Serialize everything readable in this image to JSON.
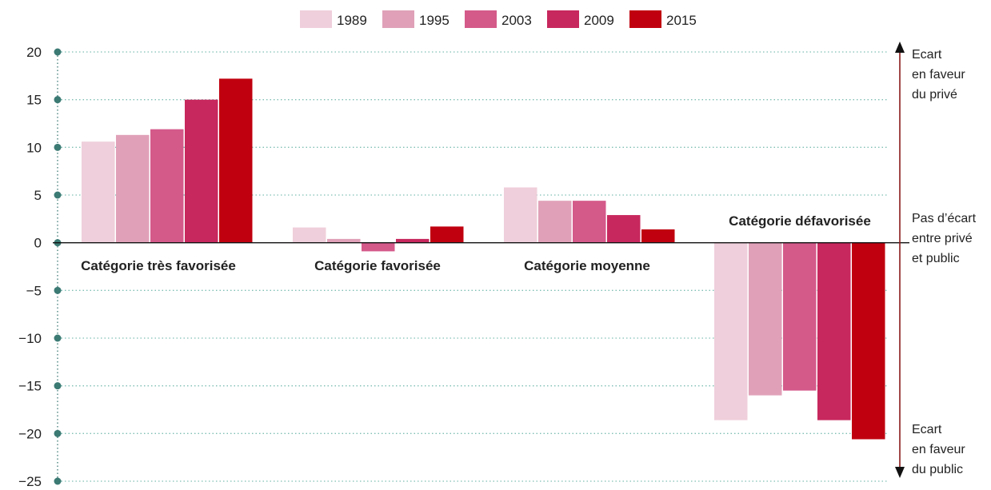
{
  "chart_data": {
    "type": "bar",
    "categories": [
      "Catégorie très favorisée",
      "Catégorie favorisée",
      "Catégorie moyenne",
      "Catégorie défavorisée"
    ],
    "series": [
      {
        "name": "1989",
        "color": "#efcfdb",
        "values": [
          10.6,
          1.6,
          5.8,
          -18.6
        ]
      },
      {
        "name": "1995",
        "color": "#e0a1b8",
        "values": [
          11.3,
          0.4,
          4.4,
          -16.0
        ]
      },
      {
        "name": "2003",
        "color": "#d45a8a",
        "values": [
          11.9,
          -0.9,
          4.4,
          -15.5
        ]
      },
      {
        "name": "2009",
        "color": "#c7285d",
        "values": [
          15.0,
          0.4,
          2.9,
          -18.6
        ]
      },
      {
        "name": "2015",
        "color": "#c0000f",
        "values": [
          17.2,
          1.7,
          1.4,
          -20.6
        ]
      }
    ],
    "yticks": [
      "20",
      "15",
      "10",
      "5",
      "0",
      "−5",
      "−10",
      "−15",
      "−20",
      "−25"
    ],
    "ylim": [
      -25,
      20
    ],
    "grid": "dotted horizontal",
    "legend_position": "top-center",
    "annotations": {
      "top": [
        "Ecart",
        "en faveur",
        "du privé"
      ],
      "middle": [
        "Pas d’écart",
        "entre privé",
        "et public"
      ],
      "bottom": [
        "Ecart",
        "en faveur",
        "du public"
      ]
    }
  }
}
